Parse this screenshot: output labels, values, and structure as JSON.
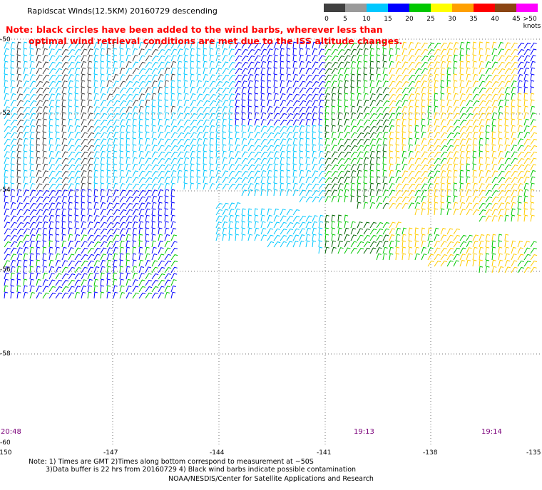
{
  "title": "Rapidscat Winds(12.5KM) 20160729 descending",
  "note": {
    "line1": "Note: black circles have been added to the wind barbs, wherever less than",
    "line2": "optimal wind retrieval conditions are met due to the ISS altitude changes."
  },
  "color_scale": {
    "labels": [
      "0",
      "5",
      "10",
      "15",
      "20",
      "25",
      "30",
      "35",
      "40",
      "45",
      ">50 knots"
    ],
    "colors": [
      "#404040",
      "#9a9a9a",
      "#00c8ff",
      "#0000ff",
      "#00c800",
      "#ffff00",
      "#ffa000",
      "#ff0000",
      "#8b4513",
      "#ff00ff",
      "#6600cc"
    ]
  },
  "latitudes": [
    "-50",
    "-52",
    "-54",
    "-56",
    "-58",
    "-60"
  ],
  "longitudes": [
    "-150",
    "-147",
    "-144",
    "-141",
    "-138",
    "-135"
  ],
  "times": [
    "20:48",
    "19:13",
    "19:14"
  ],
  "footnote": {
    "line1": "Note: 1) Times are GMT 2)Times along bottom correspond to measurement at ~50S",
    "line2": "3)Data buffer is 22 hrs from 20160729 4) Black wind barbs indicate possible contamination"
  },
  "credit": "NOAA/NESDIS/Center for Satellite Applications and Research"
}
